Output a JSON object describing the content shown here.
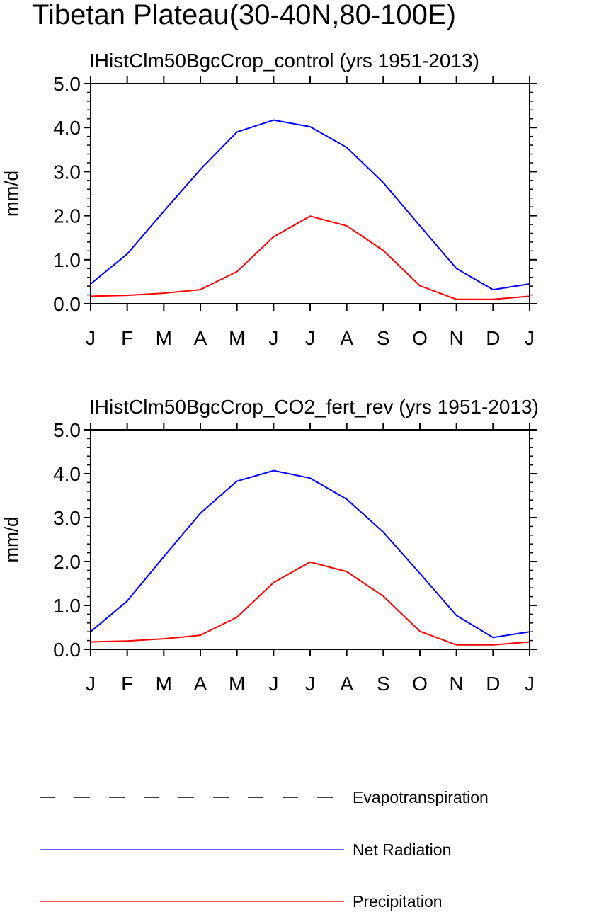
{
  "figure": {
    "title": "Tibetan Plateau(30-40N,80-100E)"
  },
  "legend": {
    "entries": [
      {
        "label": "Evapotranspiration",
        "color": "#000000",
        "style": "dashed"
      },
      {
        "label": "Net Radiation",
        "color": "#0000ff",
        "style": "solid"
      },
      {
        "label": "Precipitation",
        "color": "#ff0000",
        "style": "solid"
      }
    ]
  },
  "chart_data": [
    {
      "type": "line",
      "title": "IHistClm50BgcCrop_control (yrs 1951-2013)",
      "ylabel": "mm/d",
      "xlabel": "",
      "categories": [
        "J",
        "F",
        "M",
        "A",
        "M",
        "J",
        "J",
        "A",
        "S",
        "O",
        "N",
        "D",
        "J"
      ],
      "ylim": [
        0,
        5
      ],
      "yticks": [
        "0.0",
        "1.0",
        "2.0",
        "3.0",
        "4.0",
        "5.0"
      ],
      "series": [
        {
          "name": "Net Radiation",
          "color": "#0000ff",
          "values": [
            0.45,
            1.13,
            2.1,
            3.05,
            3.9,
            4.17,
            4.02,
            3.55,
            2.75,
            1.77,
            0.8,
            0.32,
            0.45
          ]
        },
        {
          "name": "Precipitation",
          "color": "#ff0000",
          "values": [
            0.17,
            0.19,
            0.24,
            0.32,
            0.73,
            1.52,
            1.99,
            1.77,
            1.21,
            0.41,
            0.1,
            0.1,
            0.17
          ]
        }
      ]
    },
    {
      "type": "line",
      "title": "IHistClm50BgcCrop_CO2_fert_rev (yrs 1951-2013)",
      "ylabel": "mm/d",
      "xlabel": "",
      "categories": [
        "J",
        "F",
        "M",
        "A",
        "M",
        "J",
        "J",
        "A",
        "S",
        "O",
        "N",
        "D",
        "J"
      ],
      "ylim": [
        0,
        5
      ],
      "yticks": [
        "0.0",
        "1.0",
        "2.0",
        "3.0",
        "4.0",
        "5.0"
      ],
      "series": [
        {
          "name": "Net Radiation",
          "color": "#0000ff",
          "values": [
            0.4,
            1.1,
            2.11,
            3.1,
            3.83,
            4.07,
            3.9,
            3.42,
            2.67,
            1.73,
            0.77,
            0.27,
            0.4
          ]
        },
        {
          "name": "Precipitation",
          "color": "#ff0000",
          "values": [
            0.17,
            0.19,
            0.24,
            0.32,
            0.73,
            1.52,
            1.99,
            1.77,
            1.21,
            0.41,
            0.1,
            0.1,
            0.17
          ]
        }
      ]
    }
  ]
}
